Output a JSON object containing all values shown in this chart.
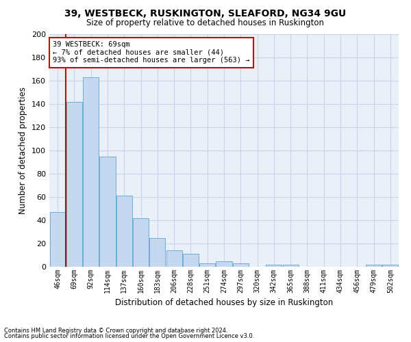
{
  "title1": "39, WESTBECK, RUSKINGTON, SLEAFORD, NG34 9GU",
  "title2": "Size of property relative to detached houses in Ruskington",
  "xlabel": "Distribution of detached houses by size in Ruskington",
  "ylabel": "Number of detached properties",
  "categories": [
    "46sqm",
    "69sqm",
    "92sqm",
    "114sqm",
    "137sqm",
    "160sqm",
    "183sqm",
    "206sqm",
    "228sqm",
    "251sqm",
    "274sqm",
    "297sqm",
    "320sqm",
    "342sqm",
    "365sqm",
    "388sqm",
    "411sqm",
    "434sqm",
    "456sqm",
    "479sqm",
    "502sqm"
  ],
  "values": [
    47,
    142,
    163,
    95,
    61,
    42,
    25,
    14,
    11,
    3,
    5,
    3,
    0,
    2,
    2,
    0,
    0,
    0,
    0,
    2,
    2
  ],
  "bar_color": "#c5d8f0",
  "bar_edge_color": "#6aaed6",
  "highlight_index": 1,
  "highlight_line_color": "#cc0000",
  "ylim": [
    0,
    200
  ],
  "yticks": [
    0,
    20,
    40,
    60,
    80,
    100,
    120,
    140,
    160,
    180,
    200
  ],
  "grid_color": "#c8d4e8",
  "background_color": "#eaf0f8",
  "annotation_title": "39 WESTBECK: 69sqm",
  "annotation_line1": "← 7% of detached houses are smaller (44)",
  "annotation_line2": "93% of semi-detached houses are larger (563) →",
  "annotation_box_color": "#ffffff",
  "annotation_box_edge": "#cc0000",
  "footnote1": "Contains HM Land Registry data © Crown copyright and database right 2024.",
  "footnote2": "Contains public sector information licensed under the Open Government Licence v3.0."
}
